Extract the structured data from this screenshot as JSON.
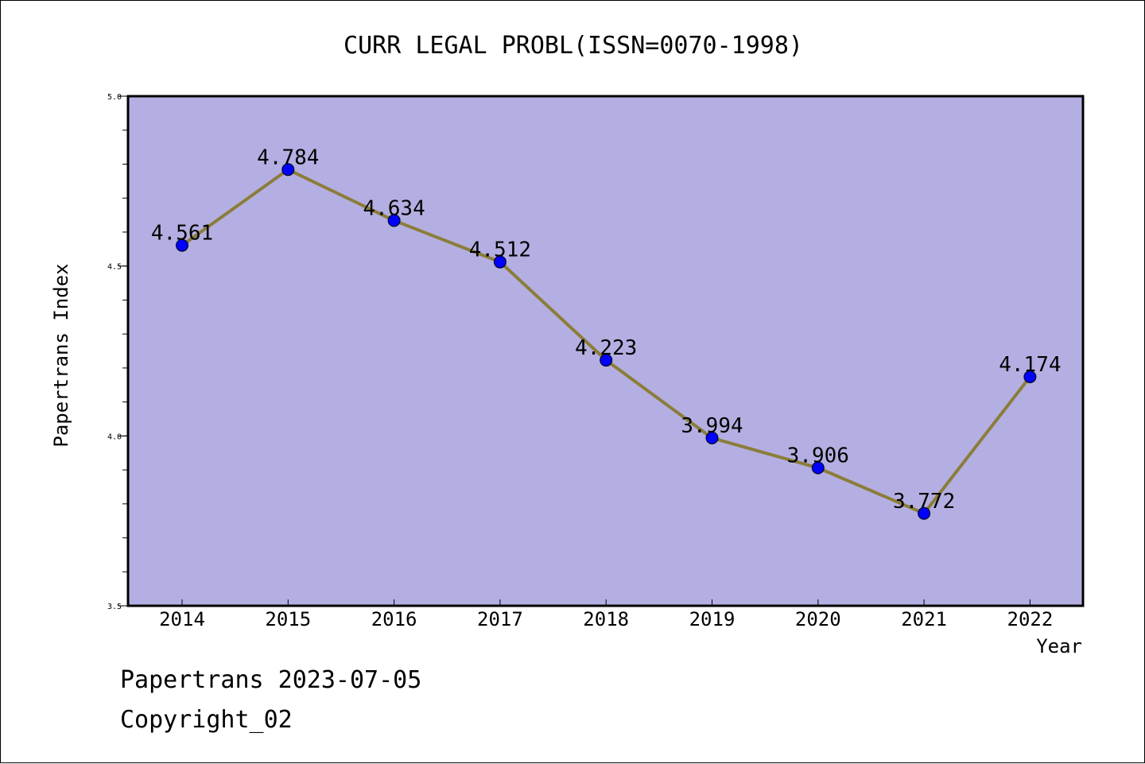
{
  "chart_data": {
    "type": "line",
    "title": "CURR LEGAL PROBL(ISSN=0070-1998)",
    "xlabel": "Year",
    "ylabel": "Papertrans Index",
    "categories": [
      "2014",
      "2015",
      "2016",
      "2017",
      "2018",
      "2019",
      "2020",
      "2021",
      "2022"
    ],
    "values": [
      4.561,
      4.784,
      4.634,
      4.512,
      4.223,
      3.994,
      3.906,
      3.772,
      4.174
    ],
    "data_labels": [
      "4.561",
      "4.784",
      "4.634",
      "4.512",
      "4.223",
      "3.994",
      "3.906",
      "3.772",
      "4.174"
    ],
    "ylim": [
      3.5,
      5.0
    ],
    "yticks": [
      3.5,
      4.0,
      4.5,
      5.0
    ],
    "ytick_labels": [
      "3.5",
      "4.0",
      "4.5",
      "5.0"
    ],
    "grid": false,
    "colors": {
      "plot_background": "#b4afe2",
      "line": "#8b7d3a",
      "marker": "#0000ff"
    }
  },
  "footer": {
    "line1": "Papertrans 2023-07-05",
    "line2": "Copyright_02"
  }
}
